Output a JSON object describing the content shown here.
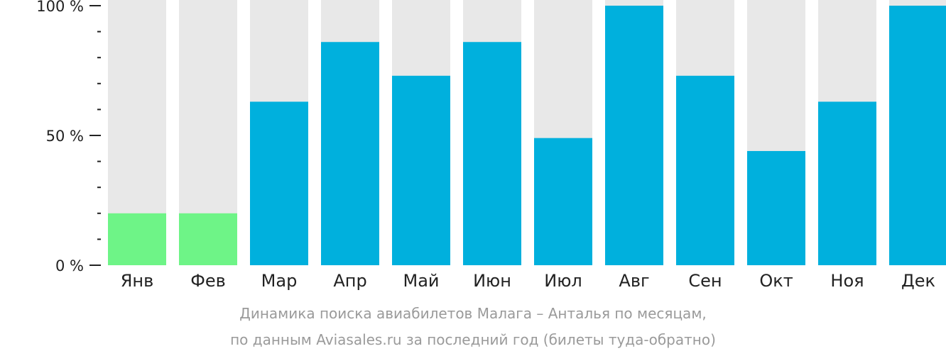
{
  "chart_data": {
    "type": "bar",
    "categories": [
      "Янв",
      "Фев",
      "Мар",
      "Апр",
      "Май",
      "Июн",
      "Июл",
      "Авг",
      "Сен",
      "Окт",
      "Ноя",
      "Дек"
    ],
    "values": [
      20,
      20,
      63,
      86,
      73,
      86,
      49,
      100,
      73,
      44,
      63,
      100
    ],
    "ylim": [
      0,
      100
    ],
    "y_ticks": [
      "0 %",
      "50 %",
      "100 %"
    ],
    "highlight": [
      true,
      true,
      false,
      false,
      false,
      false,
      false,
      false,
      false,
      false,
      false,
      false
    ],
    "caption_line1": "Динамика поиска авиабилетов Малага – Анталья по месяцам,",
    "caption_line2": "по данным Aviasales.ru за последний год (билеты туда-обратно)",
    "grid": false,
    "legend": "none"
  },
  "colors": {
    "bar": "#00b0dd",
    "highlight": "#6ef487",
    "track": "#e8e8e8",
    "axis": "#222222",
    "caption": "#9a9a9a"
  }
}
